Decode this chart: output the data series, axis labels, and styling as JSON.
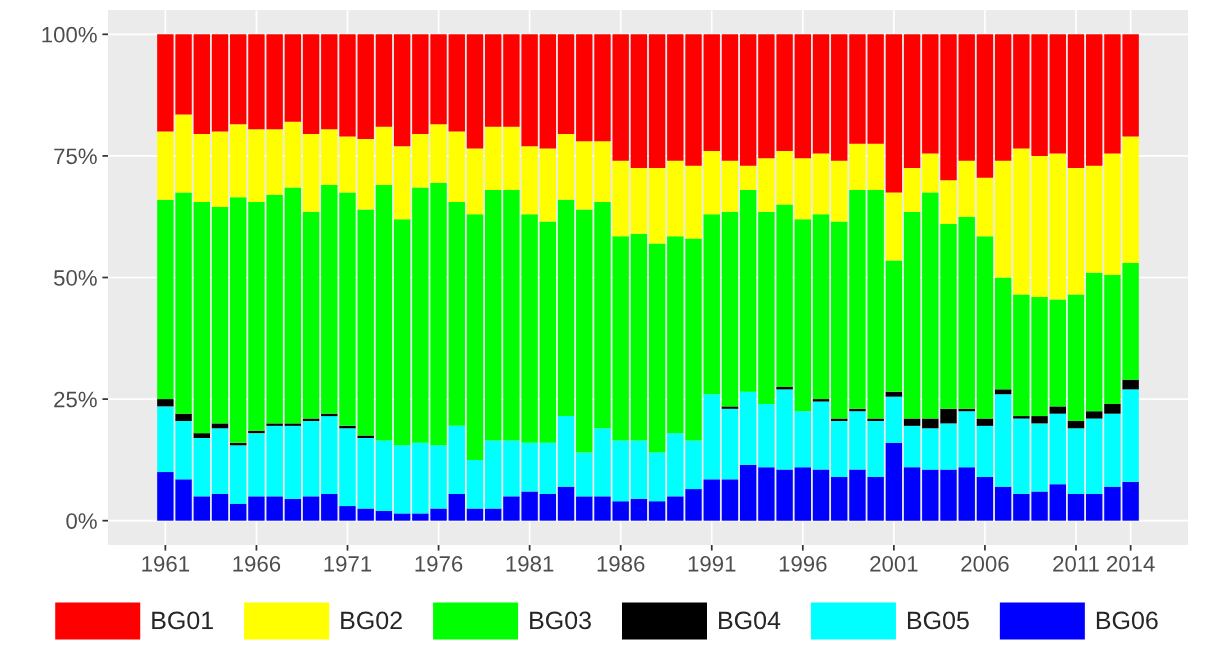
{
  "chart_data": {
    "type": "bar",
    "stacked": true,
    "x": [
      1961,
      1962,
      1963,
      1964,
      1965,
      1966,
      1967,
      1968,
      1969,
      1970,
      1971,
      1972,
      1973,
      1974,
      1975,
      1976,
      1977,
      1978,
      1979,
      1980,
      1981,
      1982,
      1983,
      1984,
      1985,
      1986,
      1987,
      1988,
      1989,
      1990,
      1991,
      1992,
      1993,
      1994,
      1995,
      1996,
      1997,
      1998,
      1999,
      2000,
      2001,
      2002,
      2003,
      2004,
      2005,
      2006,
      2007,
      2008,
      2009,
      2010,
      2011,
      2012,
      2013,
      2014
    ],
    "series": [
      {
        "name": "BG06",
        "color": "#0000ff",
        "values": [
          10,
          8.5,
          5,
          5.5,
          3.5,
          5,
          5,
          4.5,
          5,
          5.5,
          3,
          2.5,
          2,
          1.5,
          1.5,
          2.5,
          5.5,
          2.5,
          2.5,
          5,
          6,
          5.5,
          7,
          5,
          5,
          4,
          4.5,
          4,
          5,
          6.5,
          8.5,
          8.5,
          11.5,
          11,
          10.5,
          11,
          10.5,
          9,
          10.5,
          9,
          16,
          11,
          10.5,
          10.5,
          11,
          9,
          7,
          5.5,
          6,
          7.5,
          5.5,
          5.5,
          7,
          8
        ]
      },
      {
        "name": "BG05",
        "color": "#00ffff",
        "values": [
          13.5,
          12,
          12,
          13.5,
          12,
          13,
          14.5,
          15,
          15.5,
          16,
          16,
          14.5,
          14.5,
          14,
          14.5,
          13,
          14,
          10,
          14,
          11.5,
          10,
          10.5,
          14.5,
          9,
          14,
          12.5,
          12,
          10,
          13,
          10,
          17.5,
          14.5,
          15,
          13,
          16.5,
          11.5,
          14,
          11.5,
          12,
          11.5,
          9.5,
          8.5,
          8.5,
          9.5,
          11.5,
          10.5,
          19,
          15.5,
          14,
          14.5,
          13.5,
          15.5,
          15,
          19
        ]
      },
      {
        "name": "BG04",
        "color": "#000000",
        "values": [
          1.5,
          1.5,
          1,
          1,
          0.5,
          0.5,
          0.5,
          0.5,
          0.5,
          0.5,
          0.5,
          0.5,
          0,
          0,
          0,
          0,
          0,
          0,
          0,
          0,
          0,
          0,
          0,
          0,
          0,
          0,
          0,
          0,
          0,
          0,
          0,
          0.5,
          0,
          0,
          0.5,
          0,
          0.5,
          0.5,
          0.5,
          0.5,
          1,
          1.5,
          2,
          3,
          0.5,
          1.5,
          1,
          0.5,
          1.5,
          1.5,
          1.5,
          1.5,
          2,
          2
        ]
      },
      {
        "name": "BG03",
        "color": "#00ff00",
        "values": [
          41,
          45.5,
          47.5,
          44.5,
          50.5,
          47,
          47,
          48.5,
          42.5,
          47,
          48,
          46.5,
          52.5,
          46.5,
          52.5,
          54,
          46,
          50.5,
          51.5,
          51.5,
          47,
          45.5,
          44.5,
          50,
          46.5,
          42,
          42.5,
          43,
          40.5,
          41.5,
          37,
          40,
          41.5,
          39.5,
          37.5,
          39.5,
          38,
          40.5,
          45,
          47,
          27,
          42.5,
          46.5,
          38,
          39.5,
          37.5,
          23,
          25,
          24.5,
          22,
          26,
          28.5,
          26.5,
          24
        ]
      },
      {
        "name": "BG02",
        "color": "#ffff00",
        "values": [
          14,
          16,
          14,
          15.5,
          15,
          15,
          13.5,
          13.5,
          16,
          11.5,
          11.5,
          14.5,
          12,
          15,
          11,
          12,
          14.5,
          13.5,
          13,
          13,
          14,
          15,
          13.5,
          14,
          12.5,
          15.5,
          13.5,
          15.5,
          15.5,
          15,
          13,
          10.5,
          5,
          11,
          11,
          12.5,
          12.5,
          12.5,
          9.5,
          9.5,
          14,
          9,
          8,
          9,
          11.5,
          12,
          24,
          30,
          29,
          30,
          26,
          22,
          25,
          26
        ]
      },
      {
        "name": "BG01",
        "color": "#ff0000",
        "values": [
          20,
          16.5,
          20.5,
          20,
          18.5,
          19.5,
          19.5,
          18,
          20.5,
          19.5,
          21,
          21.5,
          19,
          23,
          20.5,
          18.5,
          20,
          23.5,
          19,
          19,
          23,
          23.5,
          20.5,
          22,
          22,
          26,
          27.5,
          27.5,
          26,
          27,
          24,
          26,
          27,
          25.5,
          24,
          25.5,
          24.5,
          26,
          22.5,
          22.5,
          32.5,
          27.5,
          24.5,
          30,
          26,
          29.5,
          26,
          23.5,
          25,
          24.5,
          27.5,
          27,
          24.5,
          21
        ]
      }
    ],
    "xlim": [
      1957.85,
      2017.15
    ],
    "xticks": [
      1961,
      1966,
      1971,
      1976,
      1981,
      1986,
      1991,
      1996,
      2001,
      2006,
      2011,
      2014
    ],
    "ylim": [
      -5,
      105
    ],
    "yticks": [
      {
        "value": 0,
        "label": "0%"
      },
      {
        "value": 25,
        "label": "25%"
      },
      {
        "value": 50,
        "label": "50%"
      },
      {
        "value": 75,
        "label": "75%"
      },
      {
        "value": 100,
        "label": "100%"
      }
    ],
    "grid": true,
    "legend": "bottom"
  }
}
